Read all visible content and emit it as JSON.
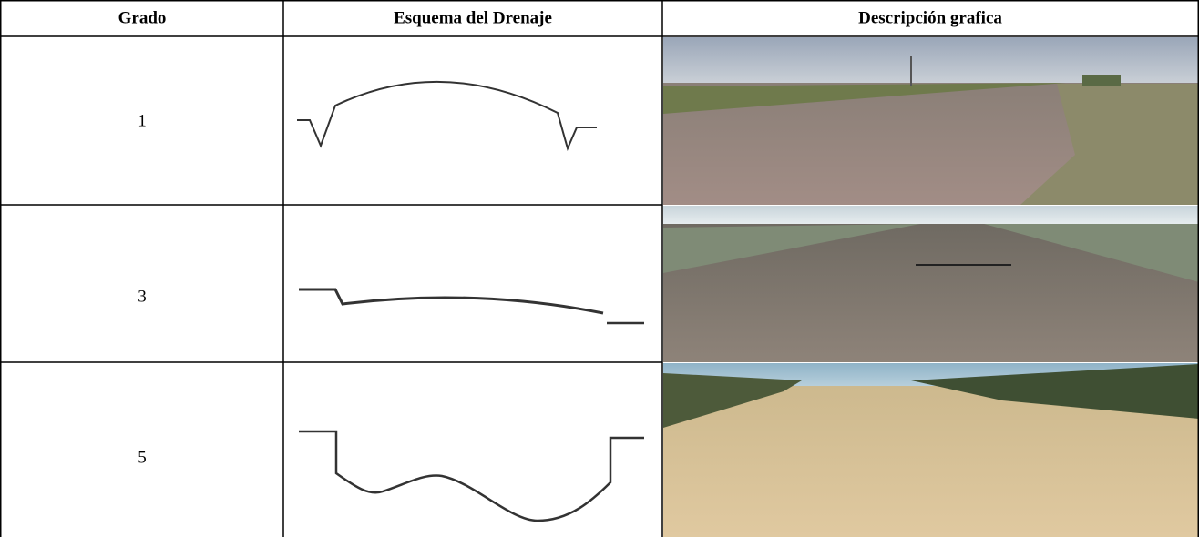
{
  "table": {
    "header": [
      "Grado",
      "Esquema del Drenaje",
      "Descripción grafica"
    ],
    "rows": [
      [
        1
      ],
      [
        3
      ],
      [
        5
      ]
    ]
  }
}
